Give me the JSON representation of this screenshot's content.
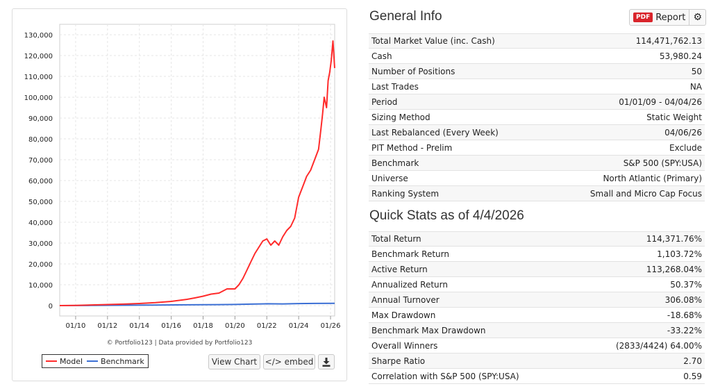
{
  "chart": {
    "credits": "© Portfolio123 | Data provided by Portfolio123",
    "legend": [
      {
        "name": "Model",
        "color": "#ff2b2b"
      },
      {
        "name": "Benchmark",
        "color": "#3b6fd4"
      }
    ],
    "buttons": {
      "view_chart": "View Chart",
      "embed": "</> embed",
      "download_icon": "download-icon"
    }
  },
  "chart_data": {
    "type": "line",
    "title": "",
    "xlabel": "",
    "ylabel": "",
    "ylim": [
      -5000,
      135000
    ],
    "grid": true,
    "y_ticks": [
      "130,000",
      "120,000",
      "110,000",
      "100,000",
      "90,000",
      "80,000",
      "70,000",
      "60,000",
      "50,000",
      "40,000",
      "30,000",
      "20,000",
      "10,000",
      "0"
    ],
    "x_ticks": [
      "01/10",
      "01/12",
      "01/14",
      "01/16",
      "01/18",
      "01/20",
      "01/22",
      "01/24",
      "01/26"
    ],
    "x_range": [
      2009.0,
      2026.26
    ],
    "series": [
      {
        "name": "Model",
        "color": "#ff2b2b",
        "x": [
          2009.0,
          2010.0,
          2011.0,
          2012.0,
          2013.0,
          2014.0,
          2015.0,
          2016.0,
          2016.5,
          2017.0,
          2017.5,
          2018.0,
          2018.5,
          2019.0,
          2019.5,
          2020.0,
          2020.25,
          2020.5,
          2020.75,
          2021.0,
          2021.25,
          2021.5,
          2021.75,
          2022.0,
          2022.25,
          2022.5,
          2022.75,
          2023.0,
          2023.25,
          2023.5,
          2023.75,
          2024.0,
          2024.25,
          2024.5,
          2024.75,
          2025.0,
          2025.25,
          2025.4,
          2025.5,
          2025.6,
          2025.75,
          2025.85,
          2025.95,
          2026.05,
          2026.15,
          2026.26
        ],
        "values": [
          0,
          100,
          300,
          500,
          700,
          1000,
          1400,
          2000,
          2500,
          3000,
          3700,
          4500,
          5500,
          6000,
          8000,
          8000,
          10000,
          13000,
          17000,
          21000,
          25000,
          28000,
          31000,
          32000,
          29000,
          31000,
          29000,
          33000,
          36000,
          38000,
          42000,
          52000,
          57000,
          62000,
          65000,
          70000,
          75000,
          85000,
          92000,
          100000,
          95000,
          108000,
          112000,
          118000,
          127000,
          114000
        ]
      },
      {
        "name": "Benchmark",
        "color": "#3b6fd4",
        "x": [
          2009.0,
          2011.0,
          2013.0,
          2015.0,
          2017.0,
          2019.0,
          2020.0,
          2021.0,
          2022.0,
          2023.0,
          2024.0,
          2025.0,
          2026.26
        ],
        "values": [
          0,
          80,
          180,
          280,
          380,
          480,
          520,
          700,
          850,
          800,
          950,
          1050,
          1100
        ]
      }
    ]
  },
  "general_info": {
    "title": "General Info",
    "report_badge": "PDF",
    "report_label": "Report",
    "gear_icon": "gear-icon",
    "rows": [
      {
        "label": "Total Market Value (inc. Cash)",
        "value": "114,471,762.13"
      },
      {
        "label": "Cash",
        "value": "53,980.24"
      },
      {
        "label": "Number of Positions",
        "value": "50"
      },
      {
        "label": "Last Trades",
        "value": "NA"
      },
      {
        "label": "Period",
        "value": "01/01/09 - 04/04/26"
      },
      {
        "label": "Sizing Method",
        "value": "Static Weight"
      },
      {
        "label": "Last Rebalanced (Every Week)",
        "value": "04/06/26"
      },
      {
        "label": "PIT Method - Prelim",
        "value": "Exclude"
      },
      {
        "label": "Benchmark",
        "value": "S&P 500 (SPY:USA)"
      },
      {
        "label": "Universe",
        "value": "North Atlantic (Primary)"
      },
      {
        "label": "Ranking System",
        "value": "Small and Micro Cap Focus"
      }
    ]
  },
  "quick_stats": {
    "title": "Quick Stats as of 4/4/2026",
    "rows": [
      {
        "label": "Total Return",
        "value": "114,371.76%"
      },
      {
        "label": "Benchmark Return",
        "value": "1,103.72%"
      },
      {
        "label": "Active Return",
        "value": "113,268.04%"
      },
      {
        "label": "Annualized Return",
        "value": "50.37%"
      },
      {
        "label": "Annual Turnover",
        "value": "306.08%"
      },
      {
        "label": "Max Drawdown",
        "value": "-18.68%"
      },
      {
        "label": "Benchmark Max Drawdown",
        "value": "-33.22%"
      },
      {
        "label": "Overall Winners",
        "value": "(2833/4424) 64.00%"
      },
      {
        "label": "Sharpe Ratio",
        "value": "2.70"
      },
      {
        "label": "Correlation with S&P 500 (SPY:USA)",
        "value": "0.59"
      }
    ]
  },
  "colors": {
    "negative": "#d2202a",
    "link": "#2d6ab0",
    "pdf_badge": "#d9242b"
  }
}
